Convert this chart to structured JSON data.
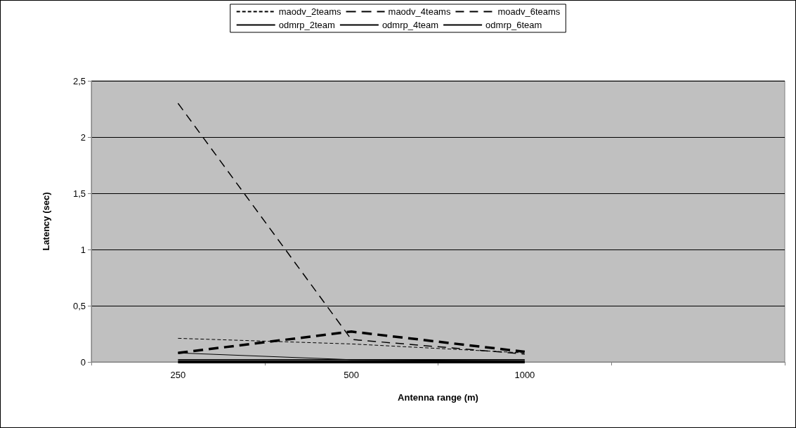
{
  "chart_data": {
    "type": "line",
    "xlabel": "Antenna range (m)",
    "ylabel": "Latency (sec)",
    "categories": [
      "250",
      "500",
      "1000",
      null
    ],
    "ylim": [
      0,
      2.5
    ],
    "yticks": [
      0,
      {
        "value": 0.5,
        "label": "0,5"
      },
      1,
      {
        "value": 1.5,
        "label": "1,5"
      },
      2,
      {
        "value": 2.5,
        "label": "2,5"
      }
    ],
    "grid": "y",
    "legend": "top",
    "marker": "none",
    "series": [
      {
        "name": "maodv_2teams",
        "color": "#000000",
        "line_style": "dashed",
        "values": [
          0.21,
          0.16,
          0.08,
          null
        ]
      },
      {
        "name": "maodv_4teams",
        "color": "#000000",
        "line_style": "dashed",
        "values": [
          0.08,
          0.27,
          0.09,
          null
        ]
      },
      {
        "name": "moadv_6teams",
        "color": "#000000",
        "line_style": "dashed",
        "values": [
          2.3,
          0.2,
          0.07,
          null
        ]
      },
      {
        "name": "odmrp_2team",
        "color": "#000000",
        "line_style": "solid",
        "values": [
          0.08,
          0.02,
          0.01,
          null
        ]
      },
      {
        "name": "odmrp_4team",
        "color": "#000000",
        "line_style": "solid",
        "values": [
          0.02,
          0.02,
          0.02,
          null
        ]
      },
      {
        "name": "odmrp_6team",
        "color": "#000000",
        "line_style": "solid",
        "values": [
          0,
          0,
          0,
          null
        ]
      }
    ]
  }
}
